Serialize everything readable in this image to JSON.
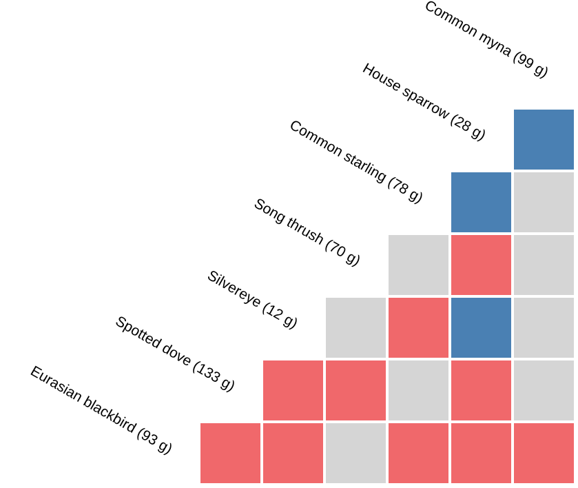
{
  "chart_data": {
    "type": "heatmap",
    "layout": "lower-triangular matrix with diagonal labels rotated 30 degrees",
    "species": [
      "Common myna (99 g)",
      "House sparrow (28 g)",
      "Common starling (78 g)",
      "Song thrush (70 g)",
      "Silvereye (12 g)",
      "Spotted dove (133 g)",
      "Eurasian blackbird (93 g)"
    ],
    "legend": "none",
    "categories": [
      "red",
      "blue",
      "grey"
    ],
    "colors": {
      "red": "#f0686b",
      "blue": "#4a80b3",
      "grey": "#d5d5d5"
    },
    "cells": [
      [
        "blue"
      ],
      [
        "blue",
        "grey"
      ],
      [
        "grey",
        "red",
        "grey"
      ],
      [
        "grey",
        "red",
        "blue",
        "grey"
      ],
      [
        "red",
        "red",
        "grey",
        "red",
        "grey"
      ],
      [
        "red",
        "red",
        "grey",
        "red",
        "red",
        "red"
      ]
    ]
  }
}
